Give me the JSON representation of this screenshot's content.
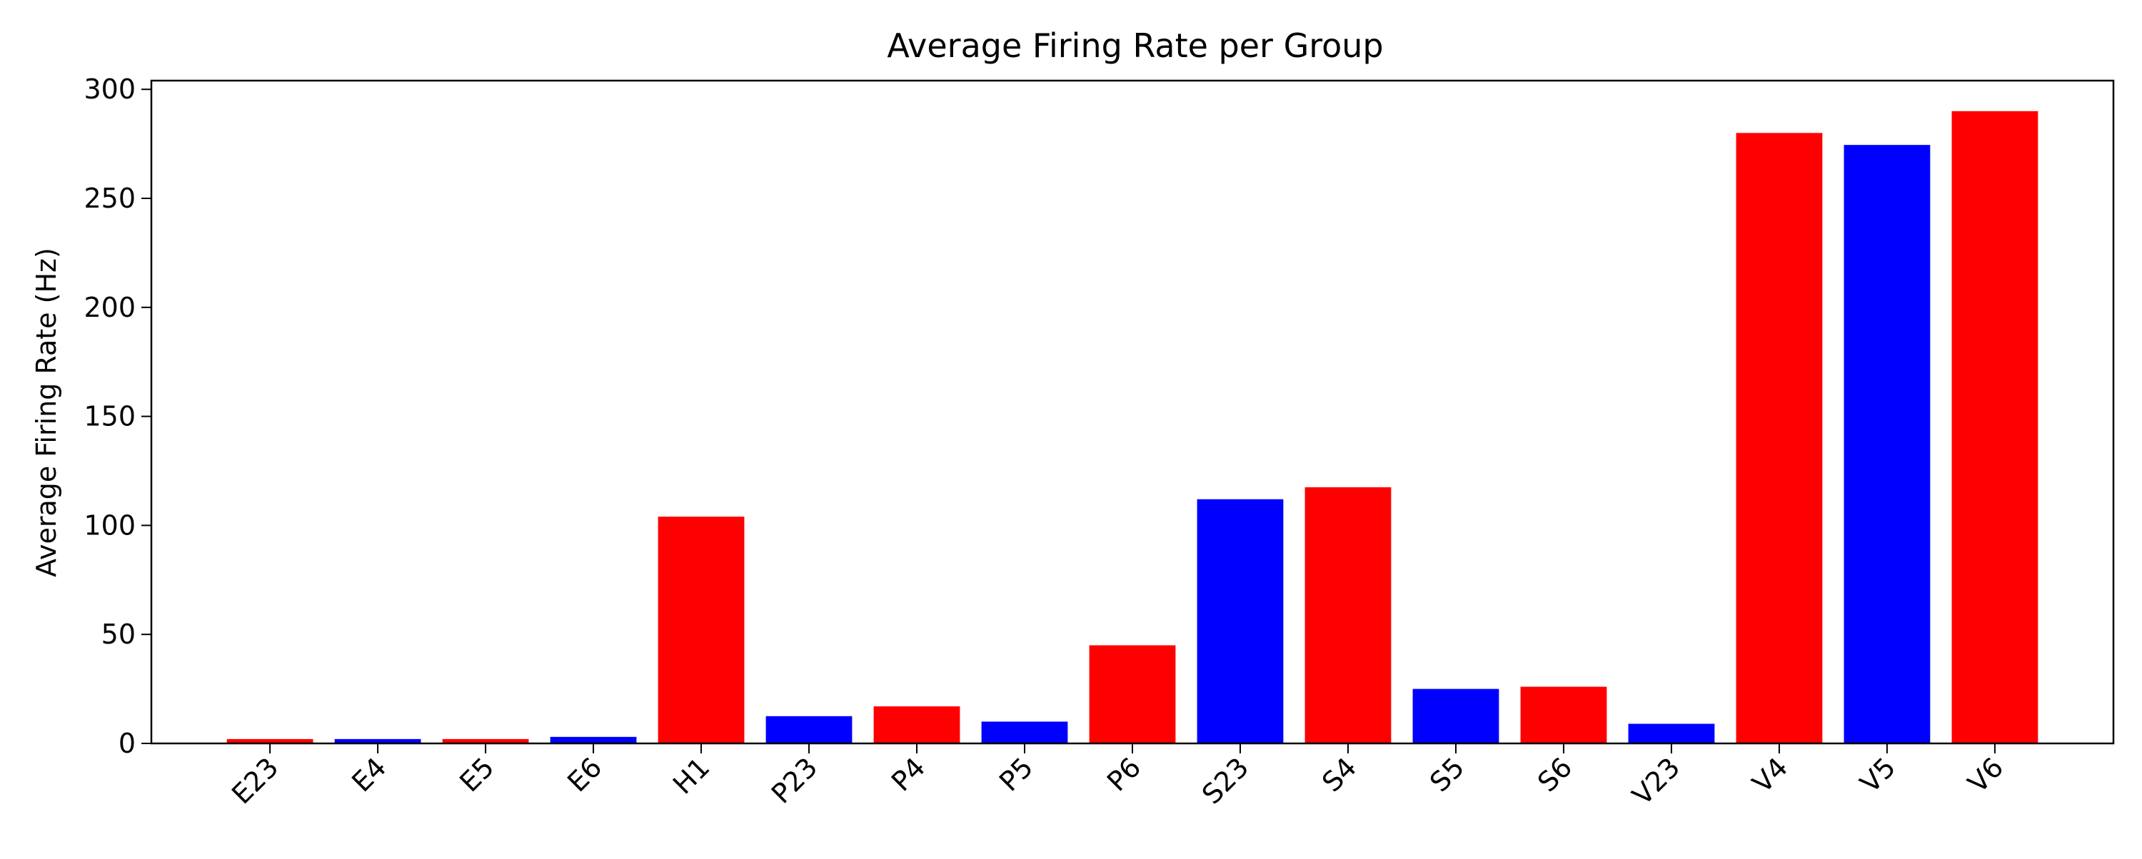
{
  "chart_data": {
    "type": "bar",
    "title": "Average Firing Rate per Group",
    "xlabel": "",
    "ylabel": "Average Firing Rate (Hz)",
    "ylim": [
      0,
      304
    ],
    "yticks": [
      0,
      50,
      100,
      150,
      200,
      250,
      300
    ],
    "grid": false,
    "categories": [
      "E23",
      "E4",
      "E5",
      "E6",
      "H1",
      "P23",
      "P4",
      "P5",
      "P6",
      "S23",
      "S4",
      "S5",
      "S6",
      "V23",
      "V4",
      "V5",
      "V6"
    ],
    "values": [
      2,
      2,
      2,
      3,
      104,
      12.5,
      17,
      10,
      45,
      112,
      117.5,
      25,
      26,
      9,
      280,
      274.5,
      290
    ],
    "bar_colors": [
      "#ff0000",
      "#0000ff",
      "#ff0000",
      "#0000ff",
      "#ff0000",
      "#0000ff",
      "#ff0000",
      "#0000ff",
      "#ff0000",
      "#0000ff",
      "#ff0000",
      "#0000ff",
      "#ff0000",
      "#0000ff",
      "#ff0000",
      "#0000ff",
      "#ff0000"
    ]
  }
}
